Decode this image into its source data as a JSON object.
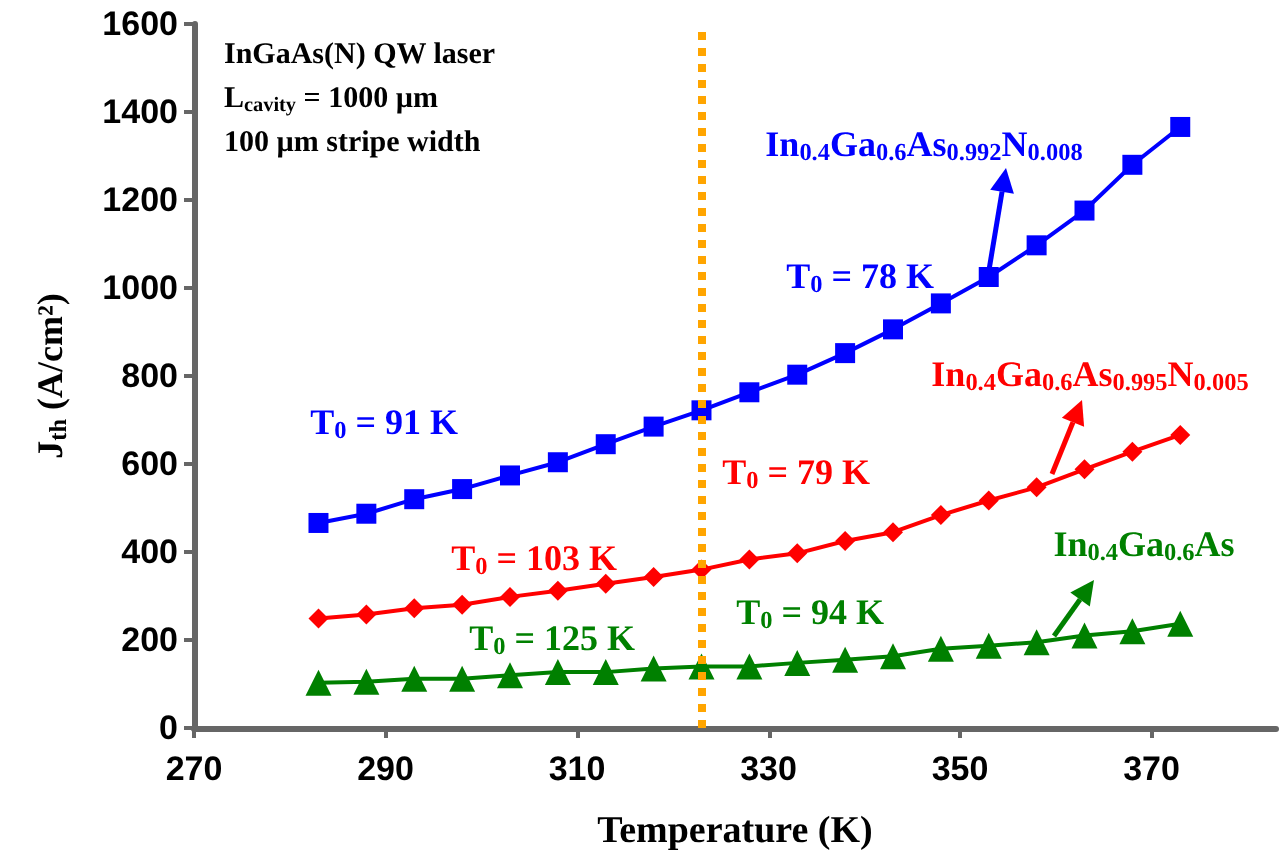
{
  "chart_data": {
    "type": "line",
    "xlabel": "Temperature (K)",
    "ylabel": "J$_{th}$ (A/cm²)",
    "x": [
      283,
      288,
      293,
      298,
      303,
      308,
      313,
      318,
      323,
      328,
      333,
      338,
      343,
      348,
      353,
      358,
      363,
      368,
      373
    ],
    "series": [
      {
        "color": "#0000ff",
        "marker": "square",
        "values": [
          466,
          487,
          520,
          543,
          574,
          604,
          645,
          685,
          722,
          763,
          803,
          852,
          906,
          965,
          1025,
          1097,
          1176,
          1280,
          1366
        ]
      },
      {
        "color": "#ff0000",
        "marker": "diamond",
        "values": [
          249,
          258,
          272,
          280,
          298,
          312,
          328,
          343,
          360,
          383,
          397,
          425,
          445,
          484,
          517,
          547,
          588,
          628,
          666
        ]
      },
      {
        "color": "#008000",
        "marker": "triangle",
        "values": [
          103,
          105,
          112,
          112,
          120,
          127,
          127,
          135,
          140,
          140,
          148,
          155,
          163,
          180,
          187,
          195,
          210,
          220,
          237
        ]
      }
    ],
    "xlim": [
      270,
      383
    ],
    "xticks": [
      270,
      290,
      310,
      330,
      350,
      370
    ],
    "ylim": [
      0,
      1600
    ],
    "yticks": [
      0,
      200,
      400,
      600,
      800,
      1000,
      1200,
      1400,
      1600
    ],
    "grid": false,
    "line_style": "solid",
    "ref_lines": [
      {
        "axis": "x",
        "value": 323,
        "color": "#ffa500",
        "line_style": "dotted"
      }
    ],
    "annotations": [
      "InGaAs(N) QW laser",
      "L$_{cavity}$ = 1000 µm",
      "100 µm stripe width",
      "In$_{0.4}$Ga$_{0.6}$As$_{0.992}$N$_{0.008}$",
      "In$_{0.4}$Ga$_{0.6}$As$_{0.995}$N$_{0.005}$",
      "In$_{0.4}$Ga$_{0.6}$As",
      "T$_{0}$ = 91 K",
      "T$_{0}$ = 78 K",
      "T$_{0}$ = 103 K",
      "T$_{0}$ = 79 K",
      "T$_{0}$ = 125 K",
      "T$_{0}$ = 94 K"
    ]
  }
}
